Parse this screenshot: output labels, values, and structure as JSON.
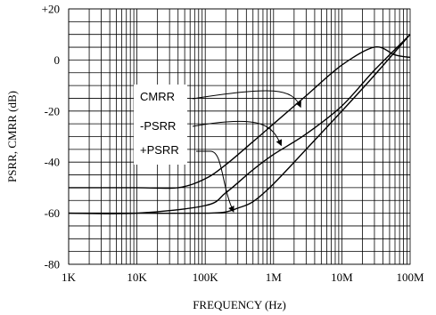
{
  "chart_data": {
    "type": "line",
    "xlabel": "FREQUENCY (Hz)",
    "ylabel": "PSRR, CMRR (dB)",
    "x_scale": "log",
    "xlim": [
      1000,
      100000000
    ],
    "ylim": [
      -80,
      20
    ],
    "grid": true,
    "x_tick_values": [
      1000,
      10000,
      100000,
      1000000,
      10000000,
      100000000
    ],
    "x_tick_labels": [
      "1K",
      "10K",
      "100K",
      "1M",
      "10M",
      "100M"
    ],
    "y_tick_values": [
      20,
      0,
      -20,
      -40,
      -60,
      -80
    ],
    "y_tick_labels": [
      "+20",
      "0",
      "-20",
      "-40",
      "-60",
      "-80"
    ],
    "series": [
      {
        "name": "CMRR",
        "x": [
          1000,
          10000,
          40000,
          100000,
          200000,
          500000,
          1000000,
          3000000,
          10000000,
          30000000,
          60000000,
          100000000
        ],
        "y": [
          -50,
          -50,
          -50,
          -46.5,
          -41,
          -32,
          -25,
          -14,
          -2,
          5,
          2,
          1
        ]
      },
      {
        "name": "-PSRR",
        "x": [
          1000,
          10000,
          100000,
          200000,
          500000,
          1000000,
          3000000,
          10000000,
          30000000,
          100000000
        ],
        "y": [
          -60,
          -60,
          -57,
          -52,
          -43,
          -37,
          -29,
          -18,
          -4,
          10
        ]
      },
      {
        "name": "+PSRR",
        "x": [
          1000,
          10000,
          100000,
          200000,
          300000,
          500000,
          1000000,
          3000000,
          10000000,
          30000000,
          100000000
        ],
        "y": [
          -60,
          -60,
          -60,
          -59.5,
          -58,
          -55.5,
          -48.5,
          -35,
          -20,
          -6,
          10
        ]
      }
    ],
    "annotations": [
      {
        "text": "CMRR",
        "points_to": "CMRR",
        "arrow_x": 2500000,
        "arrow_y": -18.5
      },
      {
        "text": "-PSRR",
        "points_to": "-PSRR",
        "arrow_x": 1300000,
        "arrow_y": -33.5
      },
      {
        "text": "+PSRR",
        "points_to": "+PSRR",
        "arrow_x": 260000,
        "arrow_y": -59.5
      }
    ]
  }
}
